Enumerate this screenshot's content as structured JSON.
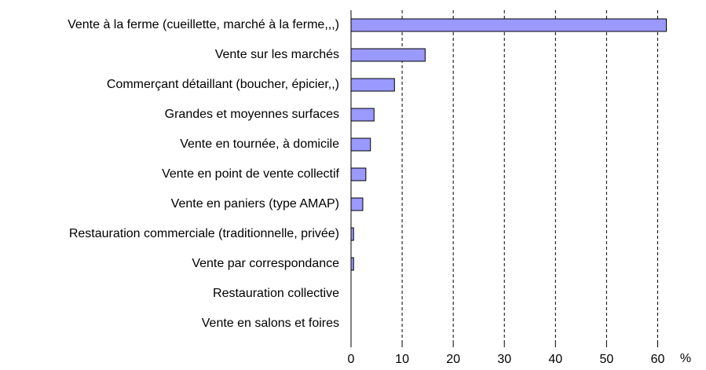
{
  "chart_data": {
    "type": "hbar",
    "categories": [
      "Vente à la ferme (cueillette, marché à la ferme,,,)",
      "Vente sur les marchés",
      "Commerçant détaillant (boucher, épicier,,)",
      "Grandes et moyennes surfaces",
      "Vente en tournée, à domicile",
      "Vente en point de vente collectif",
      "Vente en paniers (type AMAP)",
      "Restauration commerciale (traditionnelle, privée)",
      "Vente par correspondance",
      "Restauration collective",
      "Vente en salons et foires"
    ],
    "values": [
      61.7,
      14.5,
      8.5,
      4.5,
      3.8,
      2.9,
      2.3,
      0.5,
      0.5,
      0,
      0
    ],
    "color": "#9999ff",
    "xlim": [
      0,
      65
    ],
    "xticks": [
      0,
      10,
      20,
      30,
      40,
      50,
      60
    ],
    "x_label": "%",
    "grid": true
  }
}
